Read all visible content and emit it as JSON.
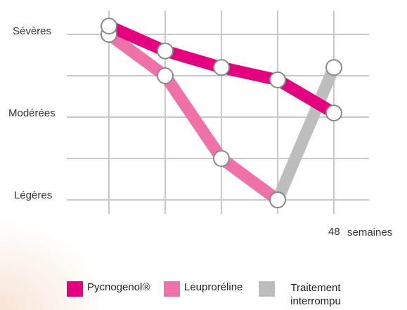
{
  "chart_data": {
    "type": "line",
    "y_categories": [
      "Légères",
      "Modérées",
      "Sévères"
    ],
    "x_end_label": "48",
    "x_unit": "semaines",
    "ylim": [
      0,
      2
    ],
    "grid": true,
    "legend_position": "bottom",
    "series": [
      {
        "name": "Pycnogenol®",
        "color": "#e4007f",
        "points": [
          [
            0,
            2.1
          ],
          [
            1,
            1.8
          ],
          [
            2,
            1.6
          ],
          [
            3,
            1.45
          ],
          [
            4,
            1.05
          ]
        ]
      },
      {
        "name": "Leuproréline",
        "color": "#f070a8",
        "points": [
          [
            0,
            2.0
          ],
          [
            1,
            1.5
          ],
          [
            2,
            0.5
          ],
          [
            3,
            0.0
          ]
        ]
      },
      {
        "name": "Traitement interrompu",
        "color": "#bdbdbd",
        "points": [
          [
            3,
            0.0
          ],
          [
            4,
            1.6
          ]
        ]
      }
    ]
  },
  "legend": [
    {
      "label": "Pycnogenol®",
      "color": "#e4007f"
    },
    {
      "label": "Leuproréline",
      "color": "#f070a8"
    },
    {
      "label": "Traitement interrompu",
      "color": "#bdbdbd"
    }
  ]
}
